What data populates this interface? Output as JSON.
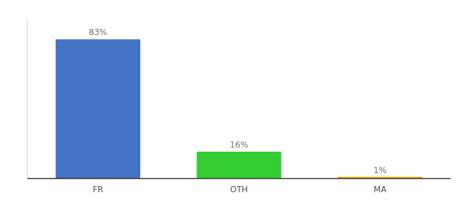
{
  "chart_data": {
    "type": "bar",
    "categories": [
      "FR",
      "OTH",
      "MA"
    ],
    "values": [
      83,
      16,
      1
    ],
    "value_labels": [
      "83%",
      "16%",
      "1%"
    ],
    "colors": [
      "#4472c4",
      "#33cc33",
      "#f0a500"
    ],
    "ylim": [
      0,
      95
    ],
    "data_labels": true,
    "tick_labels": "x",
    "grid": false
  }
}
